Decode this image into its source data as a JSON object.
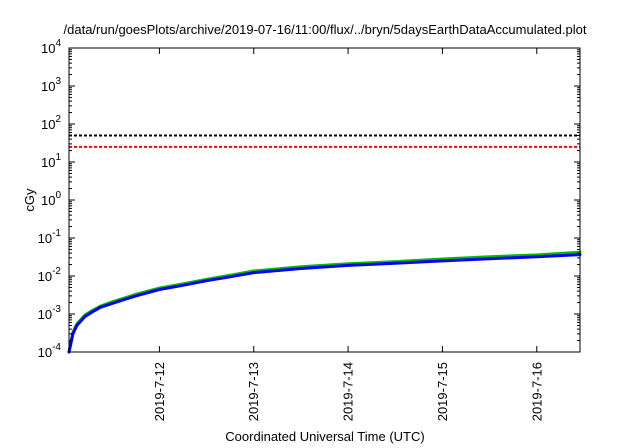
{
  "chart_data": {
    "type": "line",
    "title": "/data/run/goesPlots/archive/2019-07-16/11:00/flux/../bryn/5daysEarthDataAccumulated.plot",
    "xlabel": "Coordinated Universal Time (UTC)",
    "ylabel": "cGy",
    "yscale": "log",
    "ylim": [
      0.0001,
      10000
    ],
    "xlim": [
      "2019-07-11 01:00",
      "2019-07-16 11:00"
    ],
    "x_ticks": [
      "2019-7-12",
      "2019-7-13",
      "2019-7-14",
      "2019-7-15",
      "2019-7-16"
    ],
    "y_ticks": [
      {
        "base": "10",
        "exp": "-4",
        "value": 0.0001
      },
      {
        "base": "10",
        "exp": "-3",
        "value": 0.001
      },
      {
        "base": "10",
        "exp": "-2",
        "value": 0.01
      },
      {
        "base": "10",
        "exp": "-1",
        "value": 0.1
      },
      {
        "base": "10",
        "exp": "0",
        "value": 1
      },
      {
        "base": "10",
        "exp": "1",
        "value": 10
      },
      {
        "base": "10",
        "exp": "2",
        "value": 100
      },
      {
        "base": "10",
        "exp": "3",
        "value": 1000
      },
      {
        "base": "10",
        "exp": "4",
        "value": 10000
      }
    ],
    "grid": false,
    "legend": "none",
    "reference_lines": [
      {
        "value": 50,
        "color": "#000000",
        "style": "dashed"
      },
      {
        "value": 25,
        "color": "#ff0000",
        "style": "dashed"
      }
    ],
    "series": [
      {
        "color": "#00c000",
        "x": [
          "2019-07-11 01:00",
          "2019-07-11 02:00",
          "2019-07-11 03:00",
          "2019-07-11 05:00",
          "2019-07-11 07:00",
          "2019-07-11 09:00",
          "2019-07-11 12:00",
          "2019-07-11 15:00",
          "2019-07-11 18:00",
          "2019-07-12 00:00",
          "2019-07-12 06:00",
          "2019-07-12 12:00",
          "2019-07-12 18:00",
          "2019-07-13 00:00",
          "2019-07-13 12:00",
          "2019-07-14 00:00",
          "2019-07-14 12:00",
          "2019-07-15 00:00",
          "2019-07-15 12:00",
          "2019-07-16 00:00",
          "2019-07-16 11:00"
        ],
        "y": [
          0.0001,
          0.00033,
          0.00055,
          0.00093,
          0.00125,
          0.0016,
          0.0021,
          0.0026,
          0.0033,
          0.0048,
          0.0062,
          0.0082,
          0.0105,
          0.0135,
          0.0175,
          0.021,
          0.024,
          0.028,
          0.032,
          0.036,
          0.042
        ]
      },
      {
        "color": "#0000ff",
        "x": [
          "2019-07-11 01:00",
          "2019-07-11 02:00",
          "2019-07-11 03:00",
          "2019-07-11 05:00",
          "2019-07-11 07:00",
          "2019-07-11 09:00",
          "2019-07-11 12:00",
          "2019-07-11 15:00",
          "2019-07-11 18:00",
          "2019-07-12 00:00",
          "2019-07-12 06:00",
          "2019-07-12 12:00",
          "2019-07-12 18:00",
          "2019-07-13 00:00",
          "2019-07-13 12:00",
          "2019-07-14 00:00",
          "2019-07-14 12:00",
          "2019-07-15 00:00",
          "2019-07-15 12:00",
          "2019-07-16 00:00",
          "2019-07-16 11:00"
        ],
        "y": [
          0.0001,
          0.0003,
          0.0005,
          0.00085,
          0.00115,
          0.0015,
          0.0019,
          0.0024,
          0.003,
          0.0044,
          0.0057,
          0.0075,
          0.0095,
          0.0122,
          0.0158,
          0.019,
          0.0217,
          0.025,
          0.0285,
          0.032,
          0.0365
        ]
      }
    ]
  }
}
